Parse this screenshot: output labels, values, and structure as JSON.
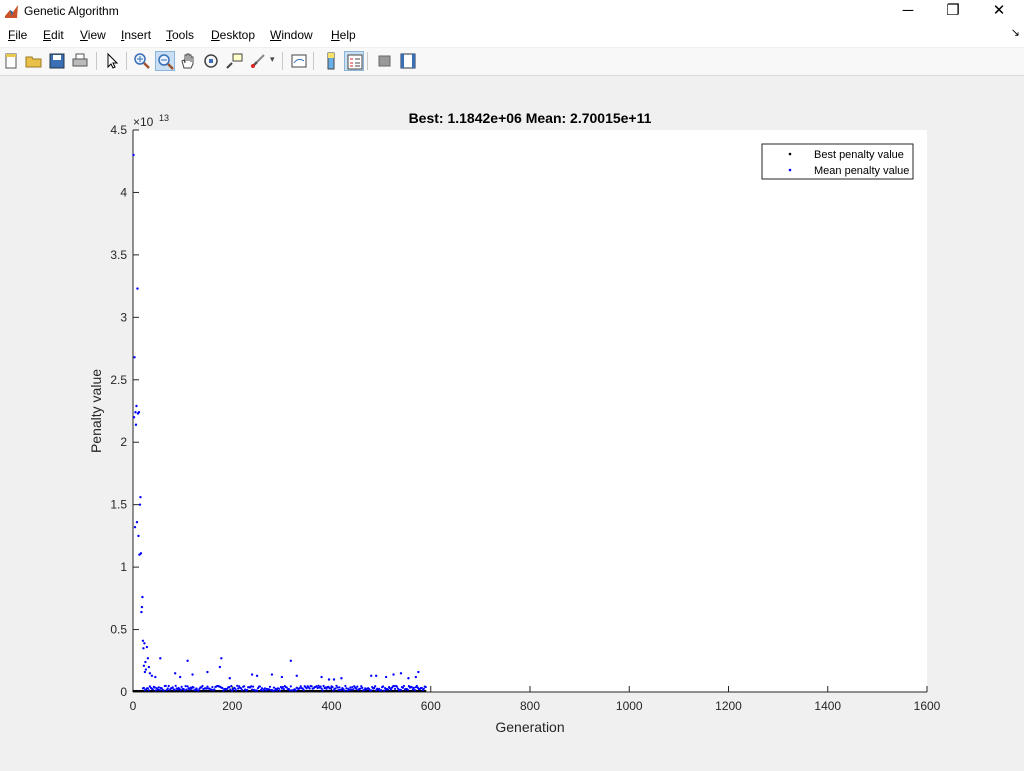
{
  "window": {
    "title": "Genetic Algorithm",
    "controls": {
      "minimize": "─",
      "restore": "❐",
      "close": "✕"
    }
  },
  "menu": {
    "items": [
      {
        "label": "File",
        "accel": "F",
        "rest": "ile"
      },
      {
        "label": "Edit",
        "accel": "E",
        "rest": "dit"
      },
      {
        "label": "View",
        "accel": "V",
        "rest": "iew"
      },
      {
        "label": "Insert",
        "accel": "I",
        "rest": "nsert"
      },
      {
        "label": "Tools",
        "accel": "T",
        "rest": "ools"
      },
      {
        "label": "Desktop",
        "accel": "D",
        "rest": "esktop"
      },
      {
        "label": "Window",
        "accel": "W",
        "rest": "indow"
      },
      {
        "label": "Help",
        "accel": "H",
        "rest": "elp"
      }
    ]
  },
  "toolbar": {
    "buttons": [
      "new-figure-icon",
      "open-file-icon",
      "save-icon",
      "print-icon",
      "edit-plot-arrow-icon",
      "zoom-in-icon",
      "zoom-out-icon",
      "pan-hand-icon",
      "rotate-3d-icon",
      "data-cursor-icon",
      "brush-icon",
      "link-plot-icon",
      "colorbar-icon",
      "legend-icon",
      "hide-plot-tools-icon",
      "show-plot-tools-icon"
    ],
    "active": [
      "zoom-out-icon",
      "legend-icon"
    ]
  },
  "colors": {
    "best": "#000000",
    "mean": "#0000ff",
    "axes_bg": "#ffffff",
    "figure_bg": "#f0f0f0"
  },
  "chart_data": {
    "type": "scatter",
    "title": "Best: 1.1842e+06 Mean: 2.70015e+11",
    "xlabel": "Generation",
    "ylabel": "Penalty value",
    "y_exponent": "×10",
    "y_exponent_power": "13",
    "xlim": [
      0,
      1600
    ],
    "ylim": [
      0,
      4.5
    ],
    "xticks": [
      "0",
      "200",
      "400",
      "600",
      "800",
      "1000",
      "1200",
      "1400",
      "1600"
    ],
    "yticks": [
      "0",
      "0.5",
      "1",
      "1.5",
      "2",
      "2.5",
      "3",
      "3.5",
      "4",
      "4.5"
    ],
    "legend": {
      "position": "top-right",
      "entries": [
        "Best penalty value",
        "Mean penalty value"
      ]
    },
    "grid": false,
    "series": [
      {
        "name": "Best penalty value",
        "x_range": [
          1,
          590
        ],
        "y_approx": 1e-07
      },
      {
        "name": "Mean penalty value",
        "points": [
          [
            1,
            4.3
          ],
          [
            2,
            2.2
          ],
          [
            3,
            2.68
          ],
          [
            4,
            1.32
          ],
          [
            5,
            2.24
          ],
          [
            6,
            2.14
          ],
          [
            7,
            2.29
          ],
          [
            8,
            1.36
          ],
          [
            9,
            3.23
          ],
          [
            10,
            2.23
          ],
          [
            11,
            1.25
          ],
          [
            12,
            2.24
          ],
          [
            13,
            1.1
          ],
          [
            14,
            1.5
          ],
          [
            15,
            1.56
          ],
          [
            16,
            1.11
          ],
          [
            17,
            0.64
          ],
          [
            18,
            0.68
          ],
          [
            19,
            0.76
          ],
          [
            20,
            0.41
          ],
          [
            21,
            0.35
          ],
          [
            22,
            0.21
          ],
          [
            23,
            0.39
          ],
          [
            24,
            0.16
          ],
          [
            25,
            0.24
          ],
          [
            26,
            0.18
          ],
          [
            28,
            0.36
          ],
          [
            30,
            0.27
          ],
          [
            32,
            0.2
          ],
          [
            34,
            0.15
          ],
          [
            38,
            0.13
          ],
          [
            45,
            0.12
          ],
          [
            55,
            0.27
          ],
          [
            85,
            0.15
          ],
          [
            95,
            0.12
          ],
          [
            110,
            0.25
          ],
          [
            120,
            0.14
          ],
          [
            150,
            0.16
          ],
          [
            175,
            0.2
          ],
          [
            178,
            0.27
          ],
          [
            195,
            0.11
          ],
          [
            240,
            0.14
          ],
          [
            250,
            0.13
          ],
          [
            280,
            0.14
          ],
          [
            300,
            0.12
          ],
          [
            318,
            0.25
          ],
          [
            330,
            0.13
          ],
          [
            380,
            0.12
          ],
          [
            395,
            0.1
          ],
          [
            405,
            0.1
          ],
          [
            420,
            0.11
          ],
          [
            480,
            0.13
          ],
          [
            490,
            0.13
          ],
          [
            510,
            0.12
          ],
          [
            525,
            0.14
          ],
          [
            540,
            0.15
          ],
          [
            555,
            0.11
          ],
          [
            570,
            0.12
          ],
          [
            575,
            0.16
          ]
        ],
        "baseline_band": {
          "x_range": [
            20,
            590
          ],
          "y_range": [
            0.01,
            0.05
          ]
        }
      }
    ]
  }
}
